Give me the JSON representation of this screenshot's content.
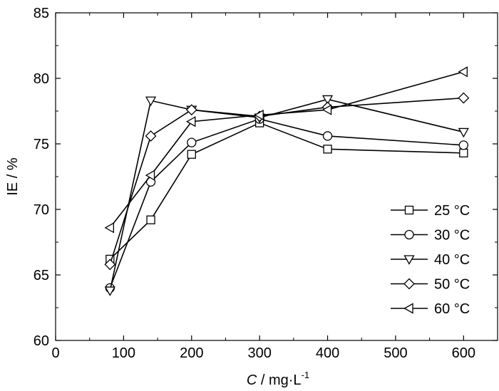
{
  "chart_data": {
    "type": "line",
    "xlabel_italic": "C",
    "xlabel_rest": " / mg·L",
    "xlabel_sup": "-1",
    "ylabel": "IE / %",
    "xlim": [
      0,
      650
    ],
    "ylim": [
      60,
      85
    ],
    "xticks": [
      0,
      100,
      200,
      300,
      400,
      500,
      600
    ],
    "yticks": [
      60,
      65,
      70,
      75,
      80,
      85
    ],
    "x": [
      80,
      140,
      200,
      300,
      400,
      600
    ],
    "grid": false,
    "legend_position": "lower-right",
    "series": [
      {
        "name": "25 °C",
        "marker": "square",
        "values": [
          66.2,
          69.2,
          74.2,
          76.6,
          74.6,
          74.3
        ]
      },
      {
        "name": "30 °C",
        "marker": "circle",
        "values": [
          64.0,
          72.1,
          75.1,
          76.9,
          75.6,
          74.9
        ]
      },
      {
        "name": "40 °C",
        "marker": "triangle-down",
        "values": [
          63.8,
          78.3,
          77.6,
          77.0,
          78.4,
          75.9
        ]
      },
      {
        "name": "50 °C",
        "marker": "diamond",
        "values": [
          65.8,
          75.6,
          77.6,
          77.1,
          77.8,
          78.5
        ]
      },
      {
        "name": "60 °C",
        "marker": "triangle-left",
        "values": [
          68.6,
          72.6,
          76.7,
          77.2,
          77.6,
          80.5
        ]
      }
    ]
  }
}
